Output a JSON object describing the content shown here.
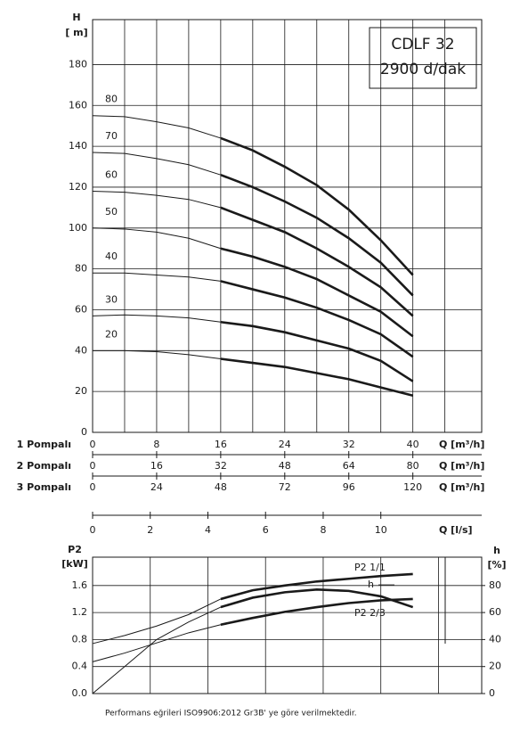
{
  "chart_data": [
    {
      "type": "line",
      "title": "CDLF 32",
      "subtitle": "2900 d/dak",
      "ylabel": "H",
      "ylabel_unit": "[ m]",
      "x": [
        0,
        4,
        8,
        12,
        16,
        20,
        24,
        28,
        32,
        36,
        40
      ],
      "series": [
        {
          "name": "80",
          "color": "#1a1a1a",
          "values": [
            155,
            154.5,
            152,
            149,
            144,
            138,
            130,
            121,
            109,
            94,
            77
          ]
        },
        {
          "name": "70",
          "color": "#1a1a1a",
          "values": [
            137,
            136.5,
            134,
            131,
            126,
            120,
            113,
            105,
            95,
            83,
            67
          ]
        },
        {
          "name": "60",
          "color": "#1a1a1a",
          "values": [
            118,
            117.5,
            116,
            114,
            110,
            104,
            98,
            90,
            81,
            71,
            57
          ]
        },
        {
          "name": "50",
          "color": "#1a1a1a",
          "values": [
            100,
            99.5,
            98,
            95,
            90,
            86,
            81,
            75,
            67,
            59,
            47
          ]
        },
        {
          "name": "40",
          "color": "#1a1a1a",
          "values": [
            78,
            78,
            77,
            76,
            74,
            70,
            66,
            61,
            55,
            48,
            37
          ]
        },
        {
          "name": "30",
          "color": "#1a1a1a",
          "values": [
            57,
            57.5,
            57,
            56,
            54,
            52,
            49,
            45,
            41,
            35,
            25
          ]
        },
        {
          "name": "20",
          "color": "#1a1a1a",
          "values": [
            40,
            40,
            39.5,
            38,
            36,
            34,
            32,
            29,
            26,
            22,
            18
          ]
        }
      ],
      "thick_from": 16,
      "xlim": [
        0,
        48.6
      ],
      "ylim": [
        0,
        202
      ],
      "yticks": [
        0,
        20,
        40,
        60,
        80,
        100,
        120,
        140,
        160,
        180
      ],
      "xgrid": [
        4,
        8,
        12,
        16,
        20,
        24,
        28,
        32,
        36,
        40,
        44
      ],
      "x_axes": [
        {
          "label": "1 Pompalı",
          "unit": "Q [m³/h]",
          "xlim": [
            0,
            48.6
          ],
          "xticks": [
            0,
            8,
            16,
            24,
            32,
            40
          ]
        },
        {
          "label": "2 Pompalı",
          "unit": "Q [m³/h]",
          "xlim": [
            0,
            97.2
          ],
          "xticks": [
            0,
            16,
            32,
            48,
            64,
            80
          ]
        },
        {
          "label": "3 Pompalı",
          "unit": "Q [m³/h]",
          "xlim": [
            0,
            145.8
          ],
          "xticks": [
            0,
            24,
            48,
            72,
            96,
            120
          ]
        },
        {
          "unit": "Q [l/s]",
          "xlim": [
            0,
            13.5
          ],
          "xticks": [
            0,
            2,
            4,
            6,
            8,
            10
          ]
        }
      ]
    },
    {
      "type": "line",
      "ylabel": "P2",
      "ylabel_unit": "[kW]",
      "y2label": "h",
      "y2label_unit": "[%]",
      "x": [
        0,
        4,
        8,
        12,
        16,
        20,
        24,
        28,
        32,
        36,
        40
      ],
      "series": [
        {
          "name": "P2 1/1",
          "color": "#1a1a1a",
          "values": [
            0.74,
            0.86,
            1.0,
            1.17,
            1.4,
            1.53,
            1.6,
            1.66,
            1.7,
            1.74,
            1.77
          ]
        },
        {
          "name": "h",
          "color": "#1a1a1a",
          "axis": "y2",
          "values": [
            0,
            20,
            40,
            53,
            64,
            71,
            75,
            77,
            76,
            72,
            64
          ]
        },
        {
          "name": "P2 2/3",
          "color": "#1a1a1a",
          "values": [
            0.47,
            0.6,
            0.75,
            0.9,
            1.02,
            1.12,
            1.21,
            1.28,
            1.34,
            1.38,
            1.4
          ]
        }
      ],
      "thick_from": 16,
      "xlim": [
        0,
        48.6
      ],
      "ylim": [
        0,
        2.02
      ],
      "yticks": [
        {
          "value": 0,
          "label": "0.0"
        },
        0.4,
        0.8,
        1.2,
        1.6
      ],
      "y2lim": [
        0,
        101
      ],
      "y2ticks": [
        0,
        20,
        40,
        60,
        80
      ],
      "xgrid": [
        7.2,
        14.4,
        21.6,
        28.8,
        36,
        43.2
      ]
    }
  ],
  "footer": "Performans eğrileri ISO9906:2012 Gr3B' ye göre verilmektedir."
}
